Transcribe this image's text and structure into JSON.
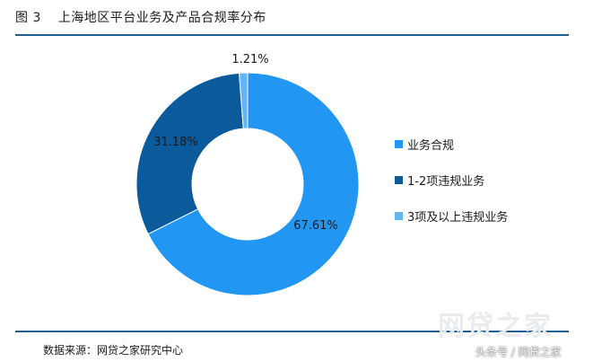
{
  "figure": {
    "label": "图 3",
    "title": "上海地区平台业务及产品合规率分布"
  },
  "source": "数据来源：网贷之家研究中心",
  "watermark": "网贷之家",
  "credit": "头条号 / 网贷之家",
  "chart_data": {
    "type": "pie",
    "subtype": "donut",
    "title": "上海地区平台业务及产品合规率分布",
    "series": [
      {
        "name": "业务合规",
        "value": 67.61,
        "label": "67.61%",
        "color": "#2196f3"
      },
      {
        "name": "1-2项违规业务",
        "value": 31.18,
        "label": "31.18%",
        "color": "#0a5a9c"
      },
      {
        "name": "3项及以上违规业务",
        "value": 1.21,
        "label": "1.21%",
        "color": "#64b5f6"
      }
    ],
    "legend_position": "right"
  }
}
